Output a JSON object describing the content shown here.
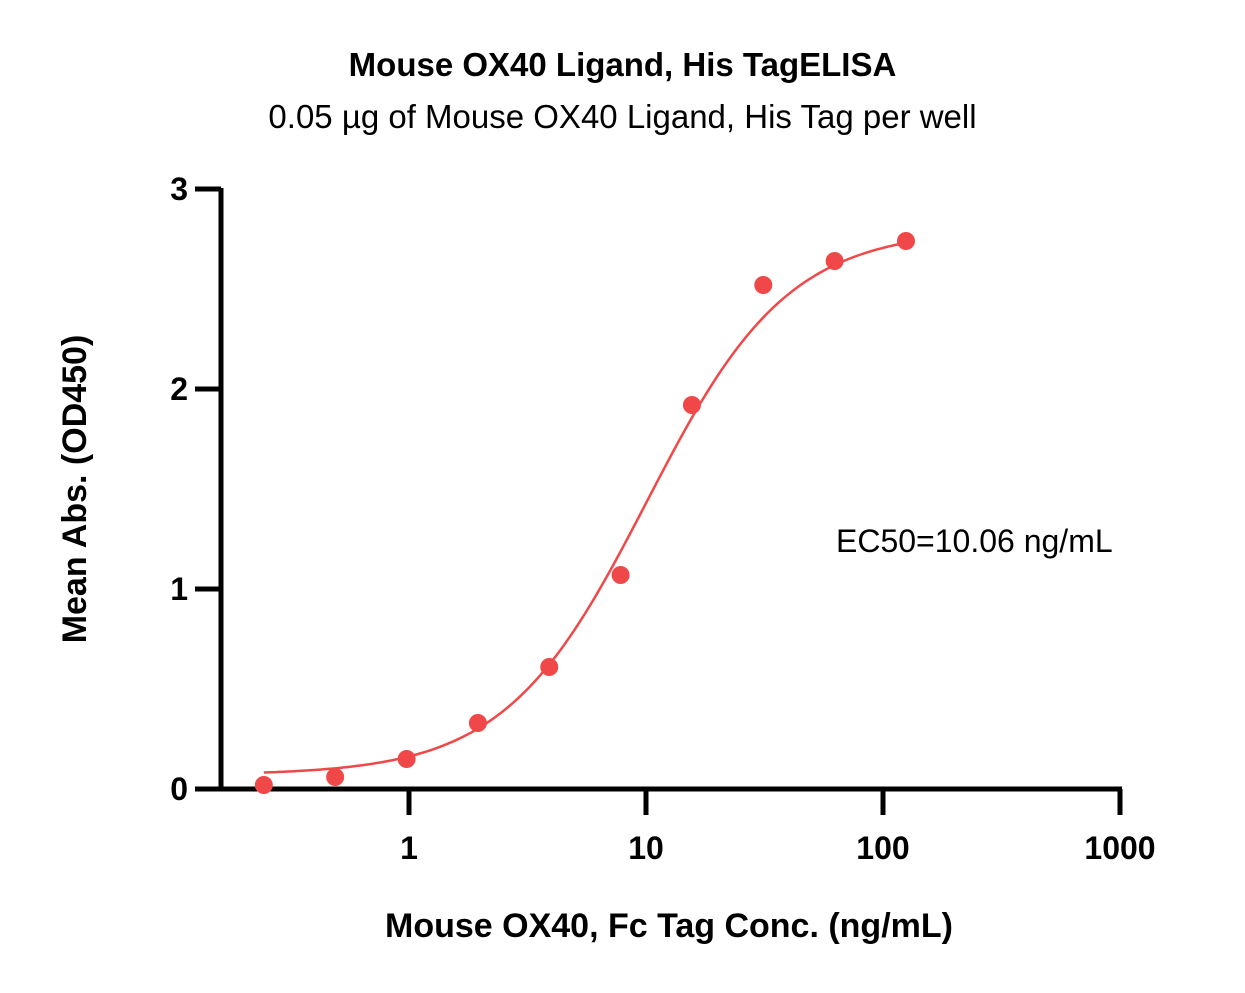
{
  "chart_data": {
    "type": "scatter",
    "title": "Mouse OX40 Ligand, His TagELISA",
    "subtitle": "0.05 µg of Mouse OX40 Ligand, His Tag per well",
    "xlabel": "Mouse OX40, Fc Tag Conc. (ng/mL)",
    "ylabel": "Mean Abs. (OD450)",
    "x_scale": "log",
    "xlim": [
      0.2,
      1000
    ],
    "ylim": [
      0,
      3
    ],
    "x_ticks": [
      1,
      10,
      100,
      1000
    ],
    "x_tick_labels": [
      "1",
      "10",
      "100",
      "1000"
    ],
    "y_ticks": [
      0,
      1,
      2,
      3
    ],
    "y_tick_labels": [
      "0",
      "1",
      "2",
      "3"
    ],
    "grid": false,
    "series": [
      {
        "color": "#f04848",
        "x": [
          0.244,
          0.488,
          0.977,
          1.953,
          3.906,
          7.813,
          15.625,
          31.25,
          62.5,
          125
        ],
        "y": [
          0.02,
          0.06,
          0.15,
          0.33,
          0.61,
          1.07,
          1.92,
          2.52,
          2.64,
          2.74
        ]
      }
    ],
    "fit_curve": {
      "model": "4PL",
      "bottom": 0.07,
      "top": 2.8,
      "ec50": 10.06,
      "hill": 1.45,
      "x_range": [
        0.244,
        125
      ]
    },
    "annotation": "EC50=10.06 ng/mL"
  }
}
